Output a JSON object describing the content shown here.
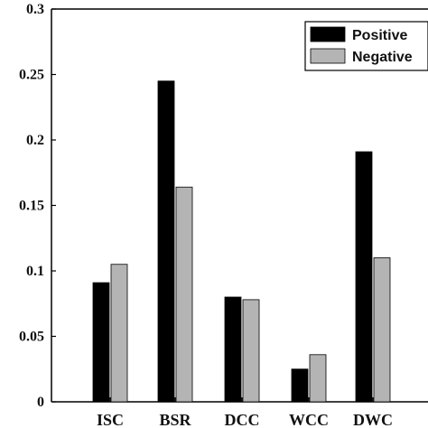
{
  "chart_data": {
    "type": "bar",
    "title": "",
    "xlabel": "",
    "ylabel": "",
    "categories": [
      "ISC",
      "BSR",
      "DCC",
      "WCC",
      "DWC"
    ],
    "series": [
      {
        "name": "Positive",
        "color": "#000000",
        "values": [
          0.091,
          0.245,
          0.08,
          0.025,
          0.191
        ]
      },
      {
        "name": "Negative",
        "color": "#b4b4b4",
        "values": [
          0.105,
          0.164,
          0.078,
          0.036,
          0.11
        ]
      }
    ],
    "ylim": [
      0,
      0.3
    ],
    "yticks": [
      0,
      0.05,
      0.1,
      0.15,
      0.2,
      0.25,
      0.3
    ],
    "ytick_labels": [
      "0",
      "0.05",
      "0.1",
      "0.15",
      "0.2",
      "0.25",
      "0.3"
    ],
    "grid": false,
    "legend": {
      "position": "top-right",
      "entries": [
        "Positive",
        "Negative"
      ]
    }
  }
}
